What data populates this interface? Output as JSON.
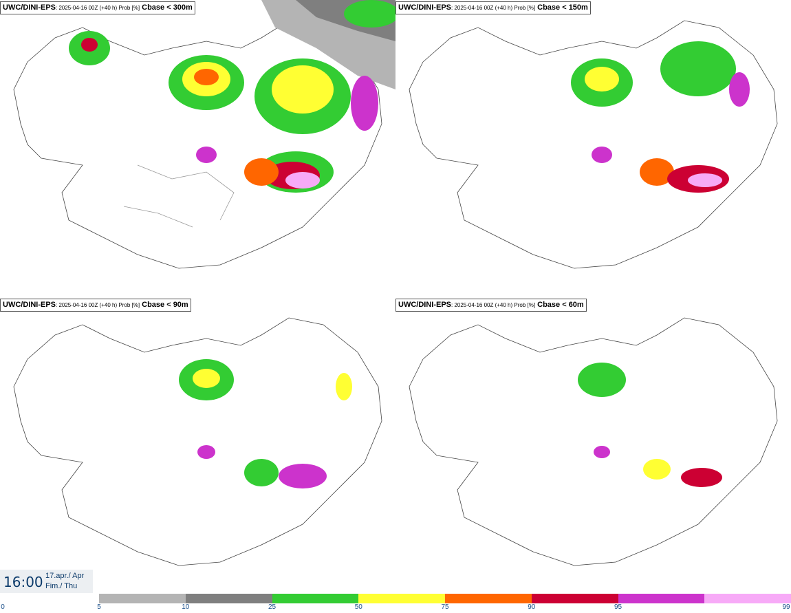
{
  "panels": [
    {
      "model": "UWC/DINI-EPS",
      "run": ": 2025-04-16 00Z (+40 h) Prob [%]",
      "field": "Cbase < 300m"
    },
    {
      "model": "UWC/DINI-EPS",
      "run": ": 2025-04-16 00Z (+40 h) Prob [%]",
      "field": "Cbase < 150m"
    },
    {
      "model": "UWC/DINI-EPS",
      "run": ": 2025-04-16 00Z (+40 h) Prob [%]",
      "field": "Cbase < 90m"
    },
    {
      "model": "UWC/DINI-EPS",
      "run": ": 2025-04-16 00Z (+40 h) Prob [%]",
      "field": "Cbase < 60m"
    }
  ],
  "valid_time": {
    "time": "16:00",
    "date_line1": "17.apr./ Apr",
    "date_line2": "Fim./ Thu"
  },
  "colorbar": {
    "ticks": [
      "0",
      "5",
      "10",
      "25",
      "50",
      "75",
      "90",
      "95",
      "99"
    ],
    "colors": [
      "#b4b4b4",
      "#7f7f7f",
      "#33cc33",
      "#ffff33",
      "#ff6600",
      "#cc0033",
      "#cc33cc",
      "#f7aaf7"
    ]
  }
}
